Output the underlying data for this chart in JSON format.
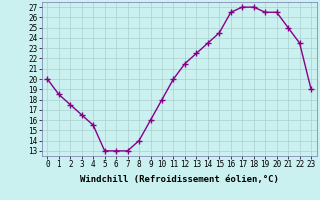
{
  "x": [
    0,
    1,
    2,
    3,
    4,
    5,
    6,
    7,
    8,
    9,
    10,
    11,
    12,
    13,
    14,
    15,
    16,
    17,
    18,
    19,
    20,
    21,
    22,
    23
  ],
  "y": [
    20.0,
    18.5,
    17.5,
    16.5,
    15.5,
    13.0,
    13.0,
    13.0,
    14.0,
    16.0,
    18.0,
    20.0,
    21.5,
    22.5,
    23.5,
    24.5,
    26.5,
    27.0,
    27.0,
    26.5,
    26.5,
    25.0,
    23.5,
    19.0
  ],
  "x_labels": [
    "0",
    "1",
    "2",
    "3",
    "4",
    "5",
    "6",
    "7",
    "8",
    "9",
    "10",
    "11",
    "12",
    "13",
    "14",
    "15",
    "16",
    "17",
    "18",
    "19",
    "20",
    "21",
    "22",
    "23"
  ],
  "y_ticks": [
    13,
    14,
    15,
    16,
    17,
    18,
    19,
    20,
    21,
    22,
    23,
    24,
    25,
    26,
    27
  ],
  "ylim": [
    12.5,
    27.5
  ],
  "xlim": [
    -0.5,
    23.5
  ],
  "line_color": "#880088",
  "marker": "+",
  "marker_size": 4,
  "marker_lw": 1.0,
  "line_width": 1.0,
  "bg_color": "#caf0f0",
  "grid_color": "#aacfcf",
  "xlabel": "Windchill (Refroidissement éolien,°C)",
  "xlabel_fontsize": 6.5,
  "tick_fontsize": 5.5,
  "spine_color": "#7777aa"
}
